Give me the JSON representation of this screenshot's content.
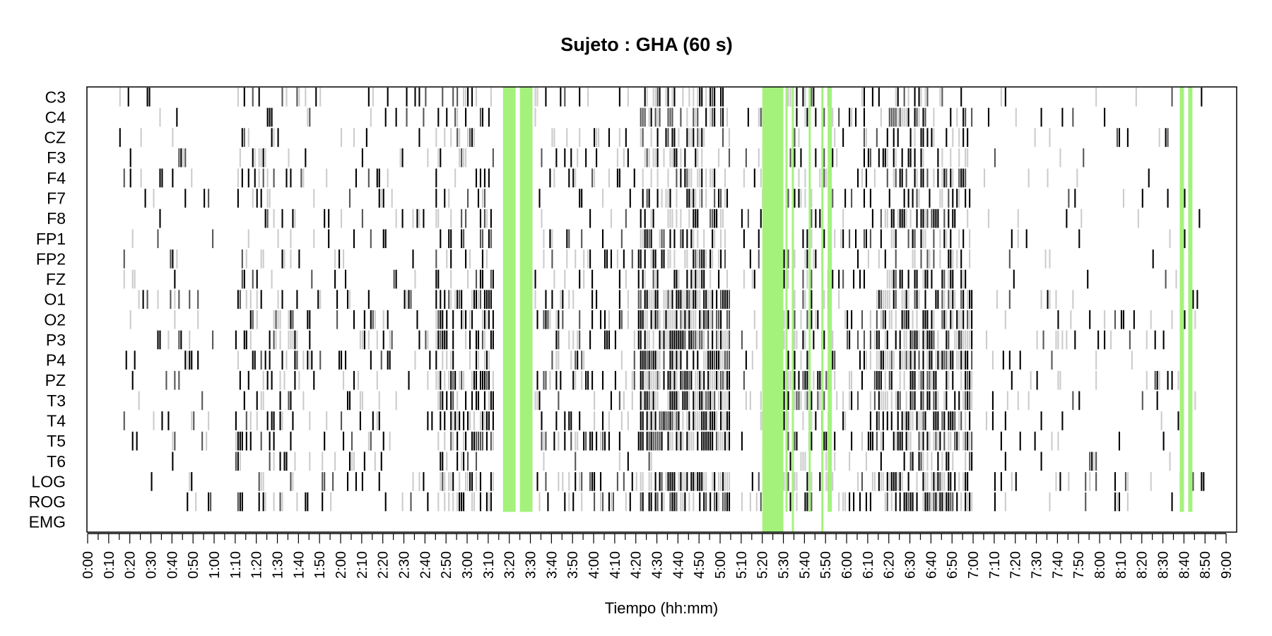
{
  "chart_data": {
    "type": "heatmap",
    "title": "Sujeto : GHA  (60 s)",
    "xlabel": "Tiempo (hh:mm)",
    "ylabel": "",
    "x_unit": "minutes",
    "xlim": [
      0,
      545
    ],
    "channels": [
      "C3",
      "C4",
      "CZ",
      "F3",
      "F4",
      "F7",
      "F8",
      "FP1",
      "FP2",
      "FZ",
      "O1",
      "O2",
      "P3",
      "P4",
      "PZ",
      "T3",
      "T4",
      "T5",
      "T6",
      "LOG",
      "ROG",
      "EMG"
    ],
    "x_ticks": [
      "0:00",
      "0:10",
      "0:20",
      "0:30",
      "0:40",
      "0:50",
      "1:00",
      "1:10",
      "1:20",
      "1:30",
      "1:40",
      "1:50",
      "2:00",
      "2:10",
      "2:20",
      "2:30",
      "2:40",
      "2:50",
      "3:00",
      "3:10",
      "3:20",
      "3:30",
      "3:40",
      "3:50",
      "4:00",
      "4:10",
      "4:20",
      "4:30",
      "4:40",
      "4:50",
      "5:00",
      "5:10",
      "5:20",
      "5:30",
      "5:40",
      "5:50",
      "6:00",
      "6:10",
      "6:20",
      "6:30",
      "6:40",
      "6:50",
      "7:00",
      "7:10",
      "7:20",
      "7:30",
      "7:40",
      "7:50",
      "8:00",
      "8:10",
      "8:20",
      "8:30",
      "8:40",
      "8:50",
      "9:00"
    ],
    "artifact_color": "#a4f27c",
    "levels": {
      "low": "#cccccc",
      "mid": "#555555",
      "high": "#000000"
    },
    "artifact_segments": [
      {
        "start": 197,
        "end": 203,
        "channels": "C3-ROG"
      },
      {
        "start": 205,
        "end": 211,
        "channels": "C3-ROG"
      },
      {
        "start": 320,
        "end": 330,
        "channels": "all"
      },
      {
        "start": 331,
        "end": 332,
        "channels": "C3-ROG"
      },
      {
        "start": 334,
        "end": 335,
        "channels": "all"
      },
      {
        "start": 342,
        "end": 343,
        "channels": "C3-ROG"
      },
      {
        "start": 348,
        "end": 349,
        "channels": "all"
      },
      {
        "start": 351,
        "end": 353,
        "channels": "C3-ROG"
      },
      {
        "start": 518,
        "end": 520,
        "channels": "C3-ROG"
      },
      {
        "start": 522,
        "end": 524,
        "channels": "C3-ROG"
      }
    ],
    "activity_bands": [
      {
        "start": 15,
        "end": 60,
        "density": 0.08
      },
      {
        "start": 70,
        "end": 100,
        "density": 0.25
      },
      {
        "start": 100,
        "end": 175,
        "density": 0.1
      },
      {
        "start": 165,
        "end": 193,
        "density": 0.4
      },
      {
        "start": 212,
        "end": 262,
        "density": 0.18
      },
      {
        "start": 262,
        "end": 305,
        "density": 0.62
      },
      {
        "start": 310,
        "end": 318,
        "density": 0.15
      },
      {
        "start": 318,
        "end": 353,
        "density": 0.3
      },
      {
        "start": 353,
        "end": 375,
        "density": 0.22
      },
      {
        "start": 375,
        "end": 420,
        "density": 0.5
      },
      {
        "start": 425,
        "end": 530,
        "density": 0.07
      }
    ]
  }
}
